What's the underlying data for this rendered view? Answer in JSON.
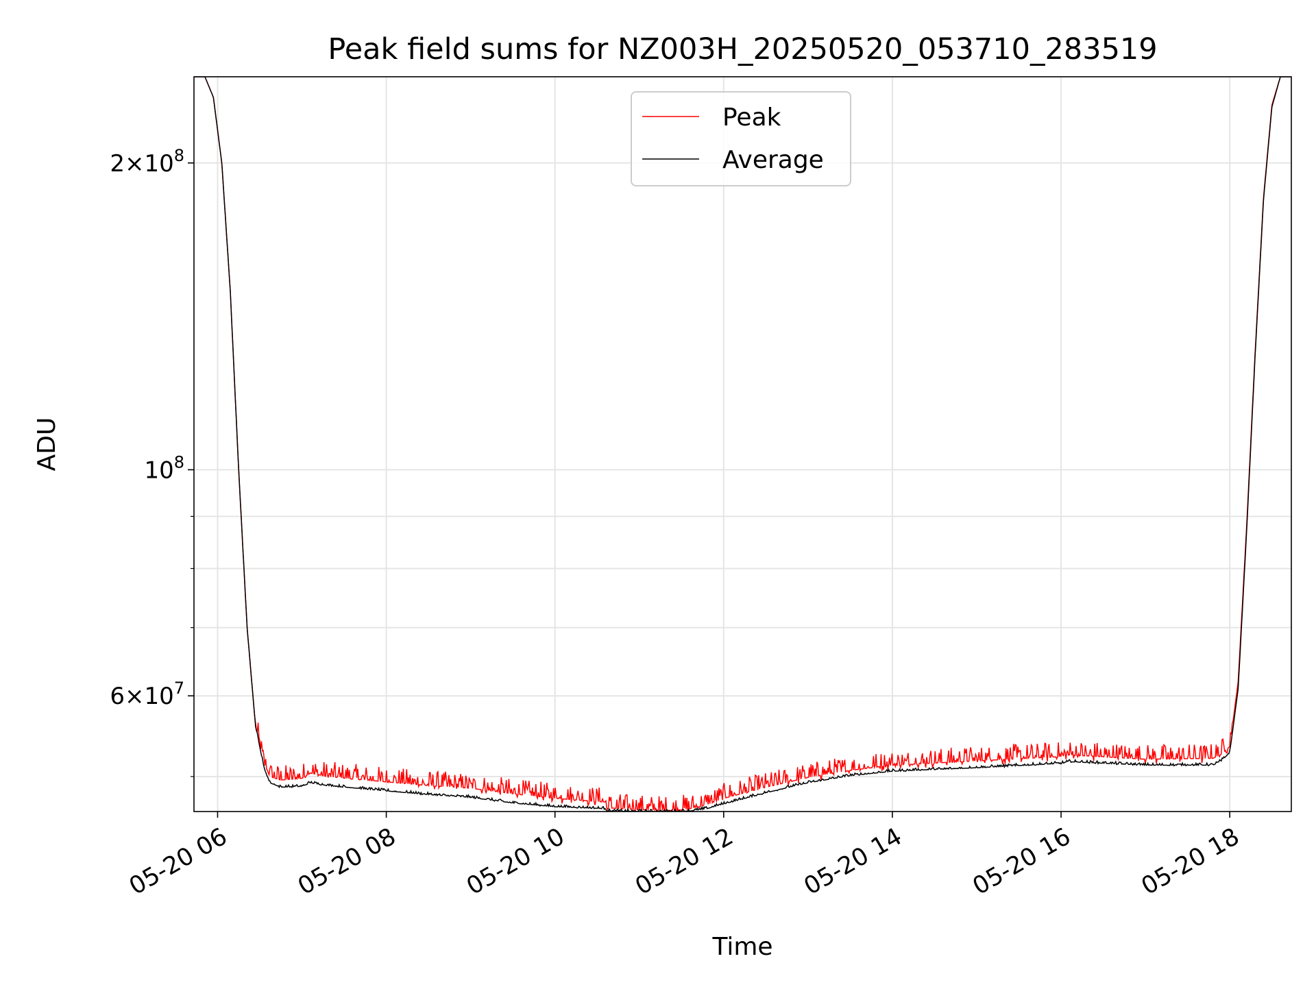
{
  "chart_data": {
    "type": "line",
    "title": "Peak field sums for NZ003H_20250520_053710_283519",
    "xlabel": "Time",
    "ylabel": "ADU",
    "yscale": "log",
    "xlim": [
      5.72,
      18.73
    ],
    "ylim": [
      46200000,
      243000000
    ],
    "grid": true,
    "legend_position": "upper center",
    "x_ticks": [
      {
        "value": 6,
        "label": "05-20 06"
      },
      {
        "value": 8,
        "label": "05-20 08"
      },
      {
        "value": 10,
        "label": "05-20 10"
      },
      {
        "value": 12,
        "label": "05-20 12"
      },
      {
        "value": 14,
        "label": "05-20 14"
      },
      {
        "value": 16,
        "label": "05-20 16"
      },
      {
        "value": 18,
        "label": "05-20 18"
      }
    ],
    "y_ticks_major": [
      {
        "value": 60000000,
        "mantissa": "6",
        "exponent": "7"
      },
      {
        "value": 100000000,
        "mantissa": "",
        "exponent": "8"
      },
      {
        "value": 200000000,
        "mantissa": "2",
        "exponent": "8"
      }
    ],
    "y_ticks_minor": [
      50000000,
      70000000,
      80000000,
      90000000
    ],
    "series": [
      {
        "name": "Peak",
        "color": "#ff0000",
        "noise_amplitude": 0.035,
        "x": [
          5.72,
          5.85,
          5.95,
          6.05,
          6.15,
          6.25,
          6.35,
          6.45,
          6.55,
          6.62,
          6.75,
          7.0,
          7.1,
          7.3,
          8.0,
          8.5,
          9.0,
          9.5,
          10.0,
          10.6,
          10.61,
          11.0,
          11.4,
          11.6,
          11.8,
          12.0,
          12.5,
          13.0,
          13.5,
          14.0,
          15.0,
          16.0,
          16.1,
          17.0,
          17.8,
          17.9,
          18.0,
          18.1,
          18.2,
          18.3,
          18.4,
          18.5,
          18.6,
          18.73
        ],
        "y": [
          243000000,
          243000000,
          232000000,
          200000000,
          150000000,
          100000000,
          70000000,
          56000000,
          51500000,
          50000000,
          49600000,
          49800000,
          50400000,
          50000000,
          49400000,
          49000000,
          48700000,
          48100000,
          47600000,
          47200000,
          46600000,
          46400000,
          46300000,
          46500000,
          46900000,
          47600000,
          48800000,
          49900000,
          50700000,
          51300000,
          51800000,
          52300000,
          52500000,
          52000000,
          52100000,
          52600000,
          53500000,
          62000000,
          88000000,
          130000000,
          185000000,
          228000000,
          243000000,
          243000000
        ]
      },
      {
        "name": "Average",
        "color": "#000000",
        "noise_amplitude": 0.005,
        "x": [
          5.72,
          5.85,
          5.95,
          6.05,
          6.15,
          6.25,
          6.35,
          6.45,
          6.55,
          6.62,
          6.75,
          7.0,
          7.1,
          7.3,
          8.0,
          8.5,
          9.0,
          9.5,
          10.0,
          10.6,
          10.61,
          11.0,
          11.4,
          11.6,
          11.8,
          12.0,
          12.5,
          13.0,
          13.5,
          14.0,
          15.0,
          16.0,
          16.1,
          17.0,
          17.8,
          17.9,
          18.0,
          18.1,
          18.2,
          18.3,
          18.4,
          18.5,
          18.6,
          18.73
        ],
        "y": [
          243000000,
          243000000,
          232000000,
          200000000,
          150000000,
          100000000,
          70000000,
          56000000,
          51000000,
          49300000,
          48800000,
          48900000,
          49300000,
          49000000,
          48400000,
          48000000,
          47700000,
          47100000,
          46700000,
          46500000,
          46250000,
          46200000,
          46200000,
          46250000,
          46500000,
          47000000,
          48200000,
          49300000,
          50100000,
          50600000,
          51000000,
          51500000,
          51700000,
          51300000,
          51300000,
          51800000,
          52800000,
          61000000,
          87000000,
          129000000,
          184000000,
          227000000,
          243000000,
          243000000
        ]
      }
    ]
  }
}
